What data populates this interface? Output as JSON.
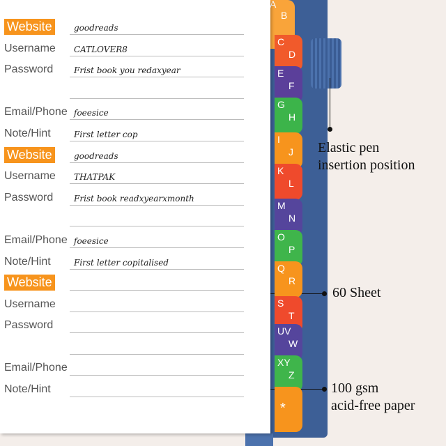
{
  "entries": [
    {
      "website": "Website",
      "website_value": "goodreads",
      "username": "Username",
      "username_value": "CATLOVER8",
      "password": "Password",
      "password_value": "Frist book you redaxyear",
      "email": "Email/Phone",
      "email_value": "foeesice",
      "note": "Note/Hint",
      "note_value": "First letter cop"
    },
    {
      "website": "Website",
      "website_value": "goodreads",
      "username": "Username",
      "username_value": "THATPAK",
      "password": "Password",
      "password_value": "Frist book readxyearxmonth",
      "email": "Email/Phone",
      "email_value": "foeesice",
      "note": "Note/Hint",
      "note_value": "First letter copitalised"
    },
    {
      "website": "Website",
      "website_value": "",
      "username": "Username",
      "username_value": "",
      "password": "Password",
      "password_value": "",
      "email": "Email/Phone",
      "email_value": "",
      "note": "Note/Hint",
      "note_value": ""
    }
  ],
  "tabs": [
    {
      "a": "A",
      "b": "B",
      "color": "#f9a43a"
    },
    {
      "a": "C",
      "b": "D",
      "color": "#f15a2b"
    },
    {
      "a": "E",
      "b": "F",
      "color": "#5b3f9a"
    },
    {
      "a": "G",
      "b": "H",
      "color": "#3cb44a"
    },
    {
      "a": "I",
      "b": "J",
      "color": "#f7941d"
    },
    {
      "a": "K",
      "b": "L",
      "color": "#ef4a2c"
    },
    {
      "a": "M",
      "b": "N",
      "color": "#55459c"
    },
    {
      "a": "O",
      "b": "P",
      "color": "#3fb54b"
    },
    {
      "a": "Q",
      "b": "R",
      "color": "#f7941d"
    },
    {
      "a": "S",
      "b": "T",
      "color": "#ef4a2c"
    },
    {
      "a": "UV",
      "b": "W",
      "color": "#55459c"
    },
    {
      "a": "XY",
      "b": "Z",
      "color": "#3fb54b"
    },
    {
      "a": "*",
      "b": "",
      "color": "#f7941d"
    }
  ],
  "annotations": {
    "elastic": "Elastic pen\ninsertion position",
    "sheets": "60 Sheet",
    "paper": "100 gsm\nacid-free paper"
  }
}
